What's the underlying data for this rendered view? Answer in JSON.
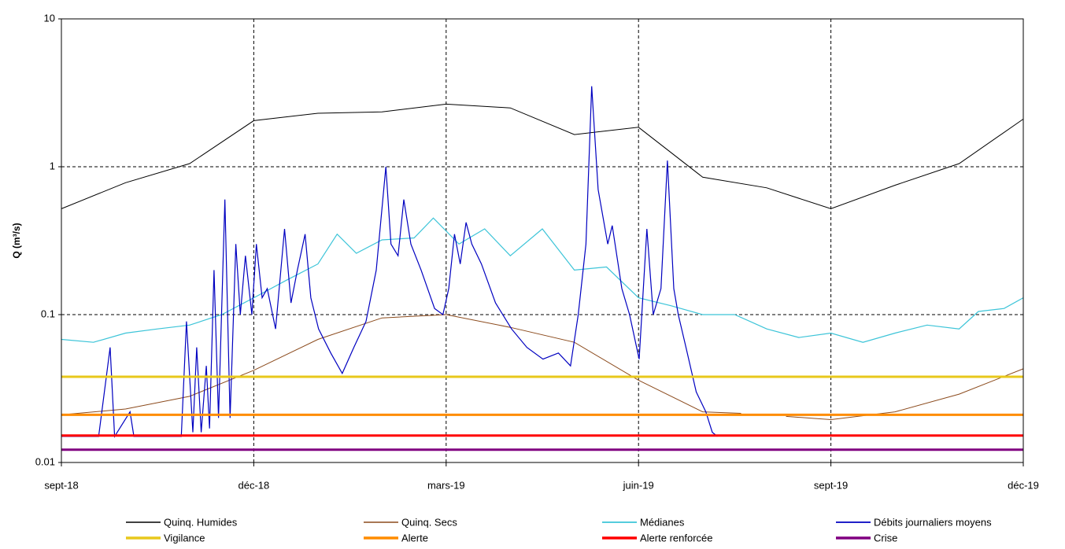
{
  "chart_data": {
    "type": "line",
    "y_label": "Q (m³/s)",
    "log_scale": true,
    "grid": true,
    "ylim": [
      0.01,
      10
    ],
    "yticks": [
      0.01,
      0.1,
      1,
      10
    ],
    "xlim": [
      0,
      15
    ],
    "xticks": [
      {
        "value": 0,
        "label": "sept-18"
      },
      {
        "value": 3,
        "label": "déc-18"
      },
      {
        "value": 6,
        "label": "mars-19"
      },
      {
        "value": 9,
        "label": "juin-19"
      },
      {
        "value": 12,
        "label": "sept-19"
      },
      {
        "value": 15,
        "label": "déc-19"
      }
    ],
    "legend": "bottom",
    "series": [
      {
        "name": "Quinq. Humides",
        "color": "#000000",
        "width": 1,
        "x": [
          0,
          1,
          2,
          3,
          4,
          5,
          6,
          7,
          8,
          9,
          10,
          11,
          12,
          13,
          14,
          15
        ],
        "values": [
          0.52,
          0.78,
          1.05,
          2.05,
          2.3,
          2.35,
          2.65,
          2.5,
          1.65,
          1.85,
          0.85,
          0.72,
          0.52,
          0.75,
          1.05,
          2.1
        ]
      },
      {
        "name": "Quinq. Secs",
        "color": "#8b4a1c",
        "width": 1,
        "x": [
          0,
          1,
          2,
          3,
          4,
          5,
          6,
          7,
          8,
          9,
          10,
          10.6,
          11,
          11.3,
          12,
          13,
          14,
          15
        ],
        "values": [
          0.021,
          0.023,
          0.028,
          0.042,
          0.068,
          0.095,
          0.1,
          0.082,
          0.065,
          0.036,
          0.022,
          0.0215,
          null,
          0.0205,
          0.0195,
          0.022,
          0.029,
          0.043
        ]
      },
      {
        "name": "Médianes",
        "color": "#3cc4d8",
        "width": 1.2,
        "x": [
          0,
          0.5,
          1,
          1.5,
          2,
          2.5,
          3,
          3.5,
          4,
          4.3,
          4.6,
          5,
          5.5,
          5.8,
          6.2,
          6.6,
          7,
          7.5,
          8,
          8.5,
          9,
          9.5,
          10,
          10.5,
          11,
          11.5,
          12,
          12.5,
          13,
          13.5,
          14,
          14.3,
          14.7,
          15
        ],
        "values": [
          0.068,
          0.065,
          0.075,
          0.08,
          0.085,
          0.1,
          0.13,
          0.17,
          0.22,
          0.35,
          0.26,
          0.32,
          0.33,
          0.45,
          0.3,
          0.38,
          0.25,
          0.38,
          0.2,
          0.21,
          0.13,
          0.115,
          0.1,
          0.1,
          0.08,
          0.07,
          0.075,
          0.065,
          0.075,
          0.085,
          0.08,
          0.105,
          0.11,
          0.13
        ]
      },
      {
        "name": "Débits journaliers moyens",
        "color": "#0000c0",
        "width": 1.2,
        "x": [
          0,
          0.58,
          0.76,
          0.83,
          1.07,
          1.13,
          1.87,
          1.95,
          2.05,
          2.11,
          2.18,
          2.26,
          2.31,
          2.38,
          2.45,
          2.55,
          2.63,
          2.72,
          2.79,
          2.87,
          2.97,
          3.04,
          3.13,
          3.21,
          3.34,
          3.48,
          3.58,
          3.68,
          3.8,
          3.89,
          4.01,
          4.2,
          4.38,
          4.56,
          4.75,
          4.91,
          5.06,
          5.14,
          5.25,
          5.34,
          5.45,
          5.61,
          5.82,
          5.95,
          6.04,
          6.13,
          6.22,
          6.31,
          6.4,
          6.55,
          6.77,
          7.02,
          7.26,
          7.51,
          7.75,
          7.94,
          8.06,
          8.18,
          8.27,
          8.37,
          8.52,
          8.59,
          8.74,
          8.86,
          9.01,
          9.13,
          9.23,
          9.35,
          9.45,
          9.55,
          9.62,
          9.74,
          9.9,
          10.05,
          10.15,
          10.23
        ],
        "values": [
          0.015,
          0.015,
          0.06,
          0.015,
          0.022,
          0.015,
          0.015,
          0.09,
          0.016,
          0.06,
          0.016,
          0.045,
          0.017,
          0.2,
          0.02,
          0.6,
          0.02,
          0.3,
          0.1,
          0.25,
          0.1,
          0.3,
          0.13,
          0.15,
          0.08,
          0.38,
          0.12,
          0.2,
          0.35,
          0.13,
          0.08,
          0.055,
          0.04,
          0.06,
          0.09,
          0.2,
          1.0,
          0.3,
          0.25,
          0.6,
          0.3,
          0.2,
          0.11,
          0.1,
          0.15,
          0.35,
          0.22,
          0.42,
          0.3,
          0.22,
          0.12,
          0.08,
          0.06,
          0.05,
          0.055,
          0.045,
          0.1,
          0.3,
          3.5,
          0.7,
          0.3,
          0.4,
          0.15,
          0.1,
          0.05,
          0.38,
          0.1,
          0.15,
          1.1,
          0.15,
          0.1,
          0.06,
          0.03,
          0.022,
          0.016,
          0.015
        ]
      },
      {
        "name": "Vigilance",
        "color": "#e8c81c",
        "width": 3,
        "x": [
          0,
          15
        ],
        "values": [
          0.038,
          0.038
        ]
      },
      {
        "name": "Alerte",
        "color": "#ff8c00",
        "width": 3,
        "x": [
          0,
          15
        ],
        "values": [
          0.021,
          0.021
        ]
      },
      {
        "name": "Alerte renforcée",
        "color": "#ff0000",
        "width": 3,
        "x": [
          0,
          15
        ],
        "values": [
          0.0152,
          0.0152
        ]
      },
      {
        "name": "Crise",
        "color": "#800080",
        "width": 3,
        "x": [
          0,
          15
        ],
        "values": [
          0.0122,
          0.0122
        ]
      }
    ]
  }
}
